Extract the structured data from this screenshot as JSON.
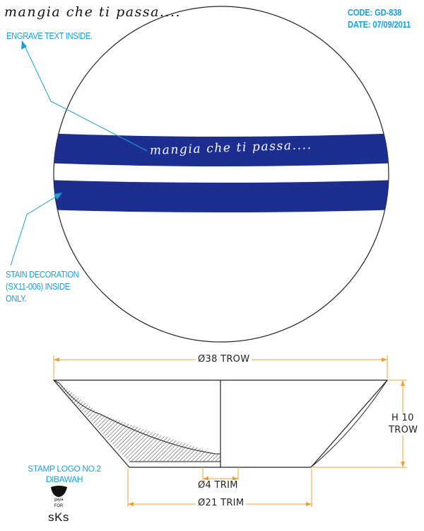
{
  "title_script": "mangia che ti passa....",
  "code": "CODE: GD-838",
  "date": "DATE: 07/09/2011",
  "annotations": {
    "engrave": "ENGRAVE TEXT INSIDE.",
    "stain_line1": "STAIN DECORATION",
    "stain_line2": "(SX11-006) INSIDE",
    "stain_line3": "ONLY.",
    "stamp_line1": "STAMP LOGO NO.2",
    "stamp_line2": "DIBAWAH"
  },
  "band_text": "mangia che ti passa....",
  "dimensions": {
    "top_diameter": "Ø38 TROW",
    "height_line1": "H 10",
    "height_line2": "TROW",
    "small_trim": "Ø4 TRIM",
    "base_trim": "Ø21 TRIM"
  },
  "logo": {
    "small": "gaya",
    "for": "FOR",
    "brand": "sKs"
  },
  "colors": {
    "accent": "#1aa0d6",
    "stain": "#1c2e8f",
    "dimension": "#f0a030"
  }
}
